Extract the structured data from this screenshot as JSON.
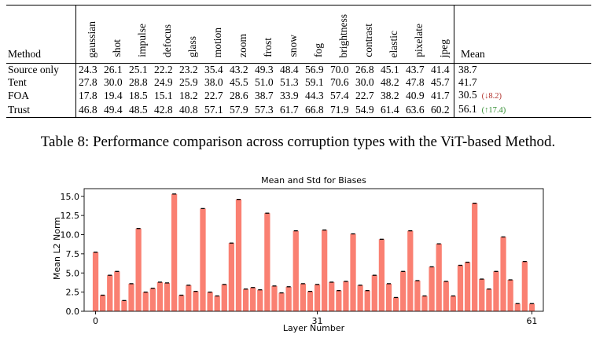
{
  "table": {
    "method_header": "Method",
    "corruptions": [
      "gaussian",
      "shot",
      "impulse",
      "defocus",
      "glass",
      "motion",
      "zoom",
      "frost",
      "snow",
      "fog",
      "brightness",
      "contrast",
      "elastic",
      "pixelate",
      "jpeg"
    ],
    "mean_header": "Mean",
    "rows": [
      {
        "method": "Source only",
        "values": [
          "24.3",
          "26.1",
          "25.1",
          "22.2",
          "23.2",
          "35.4",
          "43.2",
          "49.3",
          "48.4",
          "56.9",
          "70.0",
          "26.8",
          "45.1",
          "43.7",
          "41.4"
        ],
        "mean": "38.7",
        "delta": "",
        "delta_dir": ""
      },
      {
        "method": "Tent",
        "values": [
          "27.8",
          "30.0",
          "28.8",
          "24.9",
          "25.9",
          "38.0",
          "45.5",
          "51.0",
          "51.3",
          "59.1",
          "70.6",
          "30.0",
          "48.2",
          "47.8",
          "45.7"
        ],
        "mean": "41.7",
        "delta": "",
        "delta_dir": ""
      },
      {
        "method": "FOA",
        "values": [
          "17.8",
          "19.4",
          "18.5",
          "15.1",
          "18.2",
          "22.7",
          "28.6",
          "38.7",
          "33.9",
          "44.3",
          "57.4",
          "22.7",
          "38.2",
          "40.9",
          "41.7"
        ],
        "mean": "30.5",
        "delta": "(↓8.2)",
        "delta_dir": "down"
      },
      {
        "method": "Trust",
        "values": [
          "46.8",
          "49.4",
          "48.5",
          "42.8",
          "40.8",
          "57.1",
          "57.9",
          "57.3",
          "61.7",
          "66.8",
          "71.9",
          "54.9",
          "61.4",
          "63.6",
          "60.2"
        ],
        "mean": "56.1",
        "delta": "(↑17.4)",
        "delta_dir": "up"
      }
    ]
  },
  "caption": "Table 8: Performance comparison across corruption types with the ViT-based Method.",
  "chart_data": {
    "type": "bar",
    "title": "Mean and Std for Biases",
    "xlabel": "Layer Number",
    "ylabel": "Mean L2 Norm",
    "x": [
      0,
      1,
      2,
      3,
      4,
      5,
      6,
      7,
      8,
      9,
      10,
      11,
      12,
      13,
      14,
      15,
      16,
      17,
      18,
      19,
      20,
      21,
      22,
      23,
      24,
      25,
      26,
      27,
      28,
      29,
      30,
      31,
      32,
      33,
      34,
      35,
      36,
      37,
      38,
      39,
      40,
      41,
      42,
      43,
      44,
      45,
      46,
      47,
      48,
      49,
      50,
      51,
      52,
      53,
      54,
      55,
      56,
      57,
      58,
      59,
      60,
      61
    ],
    "values": [
      7.7,
      2.1,
      4.7,
      5.2,
      1.4,
      3.6,
      10.8,
      2.5,
      3.0,
      3.8,
      3.7,
      15.3,
      2.1,
      3.4,
      2.6,
      13.4,
      2.5,
      2.0,
      3.5,
      8.9,
      14.6,
      2.9,
      3.1,
      2.8,
      12.8,
      3.3,
      2.4,
      3.2,
      10.5,
      3.6,
      2.6,
      3.5,
      10.6,
      3.8,
      2.7,
      3.9,
      10.1,
      3.4,
      2.7,
      4.7,
      9.4,
      3.6,
      1.8,
      5.2,
      10.5,
      4.0,
      2.0,
      5.8,
      8.8,
      3.9,
      2.0,
      6.0,
      6.4,
      14.1,
      4.2,
      2.9,
      5.2,
      9.7,
      4.1,
      1.0,
      6.5,
      1.0
    ],
    "ylim": [
      0,
      16
    ],
    "yticks": [
      "0.0",
      "2.5",
      "5.0",
      "7.5",
      "10.0",
      "12.5",
      "15.0"
    ],
    "xticks": [
      "0",
      "31",
      "61"
    ],
    "bar_color": "#fa8072",
    "error_bar_color": "#000000"
  }
}
